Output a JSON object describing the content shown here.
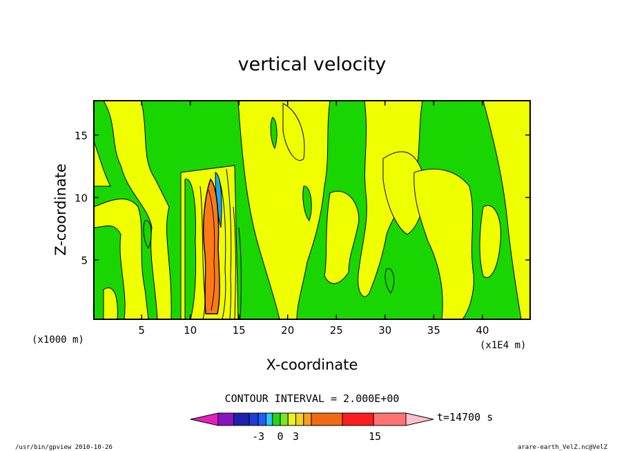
{
  "chart_data": {
    "type": "heatmap",
    "title": "vertical velocity",
    "xlabel": "X-coordinate",
    "ylabel": "Z-coordinate",
    "x_unit": "(x1E4 m)",
    "y_unit": "(x1000 m)",
    "xlim": [
      0.1,
      44.9
    ],
    "ylim": [
      0.25,
      17.75
    ],
    "x_ticks": [
      "5",
      "10",
      "15",
      "20",
      "25",
      "30",
      "35",
      "40"
    ],
    "y_ticks": [
      "5",
      "10",
      "15"
    ],
    "x_tick_values": [
      5,
      10,
      15,
      20,
      25,
      30,
      35,
      40
    ],
    "y_tick_values": [
      5,
      10,
      15
    ],
    "contour_interval": "CONTOUR INTERVAL = 2.000E+00",
    "time_label": "t=14700 s",
    "colorbar": {
      "labels": [
        "-3",
        "0",
        "3",
        "15"
      ],
      "label_values": [
        -3,
        0,
        3,
        15
      ],
      "colors": [
        "#e21fbc",
        "#8a14bf",
        "#1f1fb0",
        "#1e3cd8",
        "#1a5fff",
        "#29c8f5",
        "#1cd91c",
        "#7ae61f",
        "#eaf21f",
        "#f5d21f",
        "#f5a01f",
        "#f06a14",
        "#ff1e1e",
        "#ff7373",
        "#ffc0cb"
      ]
    },
    "field_colors": {
      "up": "#f0ff00",
      "down": "#19d600",
      "strong_up": "#ff7a14",
      "strong_down": "#1aa8ff"
    }
  },
  "footer": {
    "left": "/usr/bin/gpview   2010-10-26",
    "right": "arare-earth_VelZ.nc@VelZ"
  }
}
